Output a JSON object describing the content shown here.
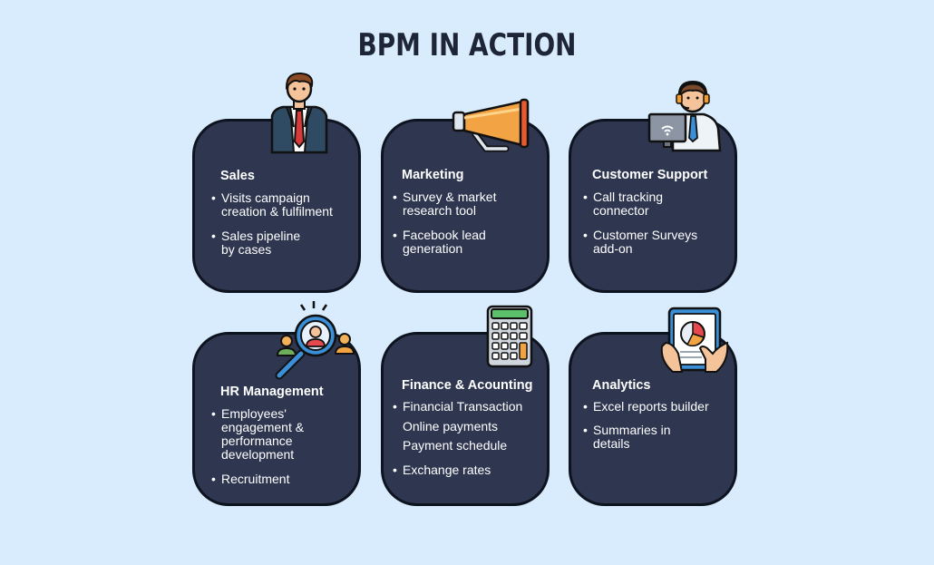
{
  "title": "BPM IN ACTION",
  "cards": [
    {
      "title": "Sales",
      "icon": "businessman-icon",
      "items": [
        "Visits campaign\ncreation & fulfilment",
        "Sales pipeline\nby cases"
      ]
    },
    {
      "title": "Marketing",
      "icon": "megaphone-icon",
      "items": [
        "Survey & market\nresearch tool",
        "Facebook lead\ngeneration"
      ]
    },
    {
      "title": "Customer Support",
      "icon": "support-agent-icon",
      "items": [
        "Call tracking\nconnector",
        "Customer Surveys\nadd-on"
      ]
    },
    {
      "title": "HR Management",
      "icon": "recruitment-magnifier-icon",
      "items": [
        "Employees'\nengagement &\nperformance\ndevelopment",
        "Recruitment"
      ]
    },
    {
      "title": "Finance & Acounting",
      "icon": "calculator-icon",
      "items": [
        "Financial Transaction",
        "Online payments",
        "Payment schedule",
        "Exchange rates"
      ]
    },
    {
      "title": "Analytics",
      "icon": "analytics-tablet-icon",
      "items": [
        "Excel reports builder",
        "Summaries in\ndetails"
      ]
    }
  ]
}
